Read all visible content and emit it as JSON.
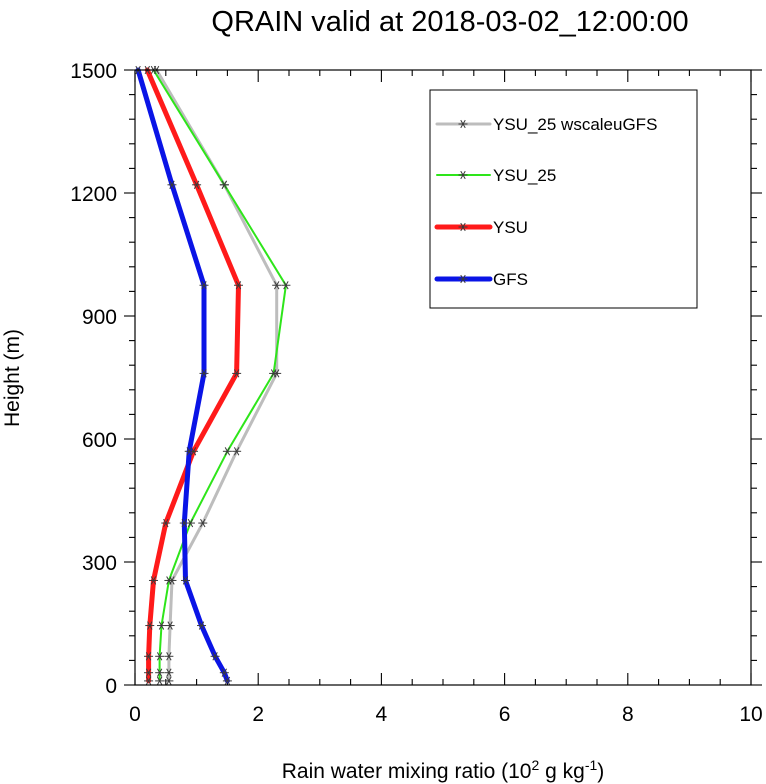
{
  "chart_data": {
    "type": "line",
    "title": "QRAIN valid at 2018-03-02_12:00:00",
    "xlabel_prefix": "Rain water mixing ratio (10",
    "xlabel_sup1": "2",
    "xlabel_mid": " g kg",
    "xlabel_sup2": "-1",
    "xlabel_suffix": ")",
    "ylabel": "Height (m)",
    "xlim": [
      0,
      10
    ],
    "ylim": [
      0,
      1500
    ],
    "xticks": [
      "0",
      "2",
      "4",
      "6",
      "8",
      "10"
    ],
    "yticks": [
      "0",
      "300",
      "600",
      "900",
      "1200",
      "1500"
    ],
    "grid": false,
    "legend_position": "top-right",
    "series": [
      {
        "name": "YSU_25 wscaleuGFS",
        "color": "#bdbdbd",
        "line_width": 3,
        "x": [
          0.55,
          0.55,
          0.55,
          0.57,
          0.6,
          1.1,
          1.65,
          2.3,
          2.3,
          1.45,
          0.35
        ],
        "y": [
          10,
          30,
          70,
          145,
          255,
          395,
          570,
          760,
          975,
          1220,
          1500
        ]
      },
      {
        "name": "YSU_25",
        "color": "#2ee51a",
        "line_width": 2,
        "x": [
          0.4,
          0.4,
          0.4,
          0.43,
          0.55,
          0.9,
          1.5,
          2.25,
          2.45,
          1.45,
          0.3
        ],
        "y": [
          10,
          30,
          70,
          145,
          255,
          395,
          570,
          760,
          975,
          1220,
          1500
        ]
      },
      {
        "name": "YSU",
        "color": "#ff1a1a",
        "line_width": 5,
        "x": [
          0.22,
          0.22,
          0.22,
          0.24,
          0.3,
          0.5,
          0.95,
          1.65,
          1.68,
          1.0,
          0.2
        ],
        "y": [
          10,
          30,
          70,
          145,
          255,
          395,
          570,
          760,
          975,
          1220,
          1500
        ]
      },
      {
        "name": "GFS",
        "color": "#0a14e6",
        "line_width": 5,
        "x": [
          1.5,
          1.45,
          1.3,
          1.08,
          0.82,
          0.8,
          0.88,
          1.12,
          1.12,
          0.6,
          0.05
        ],
        "y": [
          10,
          30,
          70,
          145,
          255,
          395,
          570,
          760,
          975,
          1220,
          1500
        ]
      }
    ]
  }
}
